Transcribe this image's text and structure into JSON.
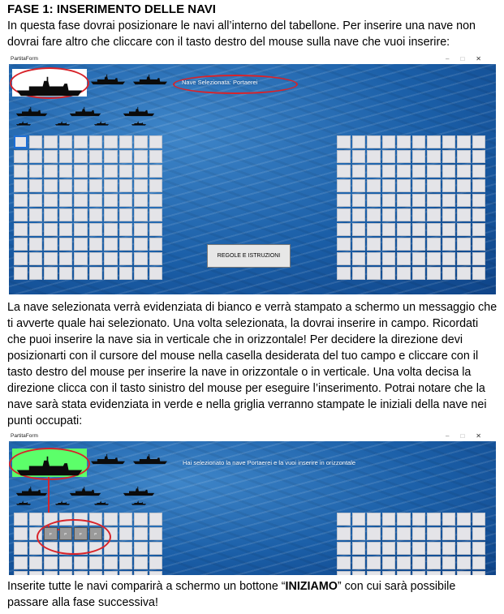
{
  "heading": "FASE 1: INSERIMENTO DELLE NAVI",
  "intro": "In questa fase dovrai posizionare le navi all’interno del tabellone. Per inserire una nave non dovrai fare altro che cliccare con il tasto destro del mouse sulla nave che vuoi inserire:",
  "screenshot1": {
    "window_title": "PartitaForm",
    "controls": [
      "–",
      "□",
      "✕"
    ],
    "message": "Nave Selezionata: Portaerei",
    "rules_button": "REGOLE E ISTRUZIONI"
  },
  "middle": "La nave selezionata verrà evidenziata di bianco e verrà stampato a schermo un messaggio che ti avverte quale hai selezionato. Una volta selezionata, la dovrai inserire in campo. Ricordati che puoi inserire la nave sia in verticale che in orizzontale! Per decidere la direzione devi posizionarti con il cursore del mouse nella casella desiderata del tuo campo e cliccare con il tasto destro del mouse per inserire la nave in orizzontale o in verticale. Una volta decisa la direzione clicca con il tasto sinistro del mouse per eseguire l’inserimento. Potrai notare che la nave sarà stata evidenziata in verde e nella griglia verranno stampate le iniziali della nave nei punti occupati:",
  "screenshot2": {
    "window_title": "PartitaForm",
    "controls": [
      "–",
      "□",
      "✕"
    ],
    "message": "Hai selezionato la nave Portaerei e la vuoi inserire in orizzontale",
    "cell_letter": "P"
  },
  "outro_before": "Inserite tutte le navi comparirà a schermo un bottone “",
  "outro_bold": "INIZIAMO",
  "outro_after": "” con cui sarà possibile passare alla fase successiva!",
  "colors": {
    "highlight_ring": "#d8232a",
    "selected_green": "#5cff6a",
    "sea": "#1b5fa8"
  }
}
